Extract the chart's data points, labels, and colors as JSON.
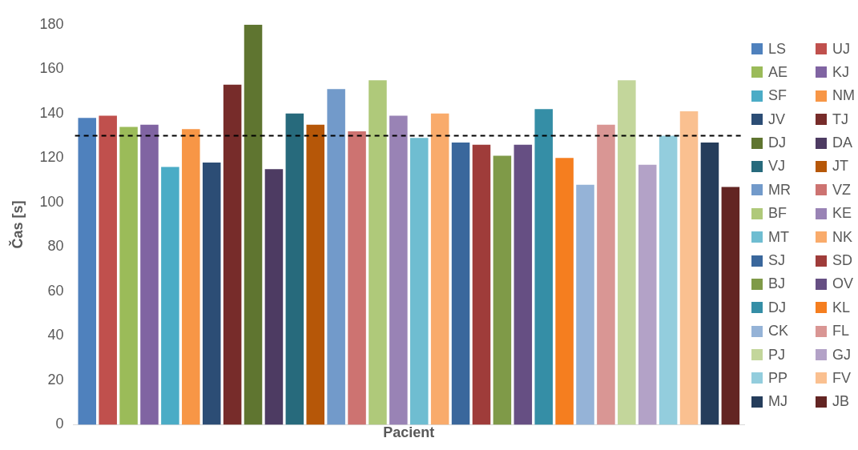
{
  "chart_data": {
    "type": "bar",
    "xlabel": "Pacient",
    "ylabel": "Čas [s]",
    "categories": [
      null
    ],
    "ylim": [
      0,
      180
    ],
    "yticks": [
      0,
      20,
      40,
      60,
      80,
      100,
      120,
      140,
      160,
      180
    ],
    "grid": false,
    "legend": "right",
    "tick_labels": "y",
    "ref_lines": [
      {
        "axis": "y",
        "value": 130,
        "color": "#000000",
        "line_style": "dashed"
      }
    ],
    "series": [
      {
        "name": "LS",
        "color": "#4f81bd",
        "values": [
          138
        ]
      },
      {
        "name": "UJ",
        "color": "#c0504d",
        "values": [
          139
        ]
      },
      {
        "name": "AE",
        "color": "#9bbb59",
        "values": [
          134
        ]
      },
      {
        "name": "KJ",
        "color": "#8064a2",
        "values": [
          135
        ]
      },
      {
        "name": "SF",
        "color": "#4bacc6",
        "values": [
          116
        ]
      },
      {
        "name": "NM",
        "color": "#f79646",
        "values": [
          133
        ]
      },
      {
        "name": "JV",
        "color": "#2c4d75",
        "values": [
          118
        ]
      },
      {
        "name": "TJ",
        "color": "#772c2a",
        "values": [
          153
        ]
      },
      {
        "name": "DJ",
        "color": "#5f7530",
        "values": [
          180
        ]
      },
      {
        "name": "DA",
        "color": "#4d3b62",
        "values": [
          115
        ]
      },
      {
        "name": "VJ",
        "color": "#276a7c",
        "values": [
          140
        ]
      },
      {
        "name": "JT",
        "color": "#b65708",
        "values": [
          135
        ]
      },
      {
        "name": "MR",
        "color": "#729aca",
        "values": [
          151
        ]
      },
      {
        "name": "VZ",
        "color": "#cd7371",
        "values": [
          132
        ]
      },
      {
        "name": "BF",
        "color": "#afc97a",
        "values": [
          155
        ]
      },
      {
        "name": "KE",
        "color": "#9983b5",
        "values": [
          139
        ]
      },
      {
        "name": "MT",
        "color": "#6fbdd1",
        "values": [
          129
        ]
      },
      {
        "name": "NK",
        "color": "#f9ab6b",
        "values": [
          140
        ]
      },
      {
        "name": "SJ",
        "color": "#3a679c",
        "values": [
          127
        ]
      },
      {
        "name": "SD",
        "color": "#9f3c3a",
        "values": [
          126
        ]
      },
      {
        "name": "BJ",
        "color": "#7f9a48",
        "values": [
          121
        ]
      },
      {
        "name": "OV",
        "color": "#664f83",
        "values": [
          126
        ]
      },
      {
        "name": "DJ",
        "color": "#358ea6",
        "values": [
          142
        ]
      },
      {
        "name": "KL",
        "color": "#f57e1f",
        "values": [
          120
        ]
      },
      {
        "name": "CK",
        "color": "#95b3d7",
        "values": [
          108
        ]
      },
      {
        "name": "FL",
        "color": "#d99694",
        "values": [
          135
        ]
      },
      {
        "name": "PJ",
        "color": "#c3d69b",
        "values": [
          155
        ]
      },
      {
        "name": "GJ",
        "color": "#b3a2c7",
        "values": [
          117
        ]
      },
      {
        "name": "PP",
        "color": "#93cddd",
        "values": [
          130
        ]
      },
      {
        "name": "FV",
        "color": "#fac090",
        "values": [
          141
        ]
      },
      {
        "name": "MJ",
        "color": "#253d5b",
        "values": [
          127
        ]
      },
      {
        "name": "JB",
        "color": "#632523",
        "values": [
          107
        ]
      }
    ]
  }
}
